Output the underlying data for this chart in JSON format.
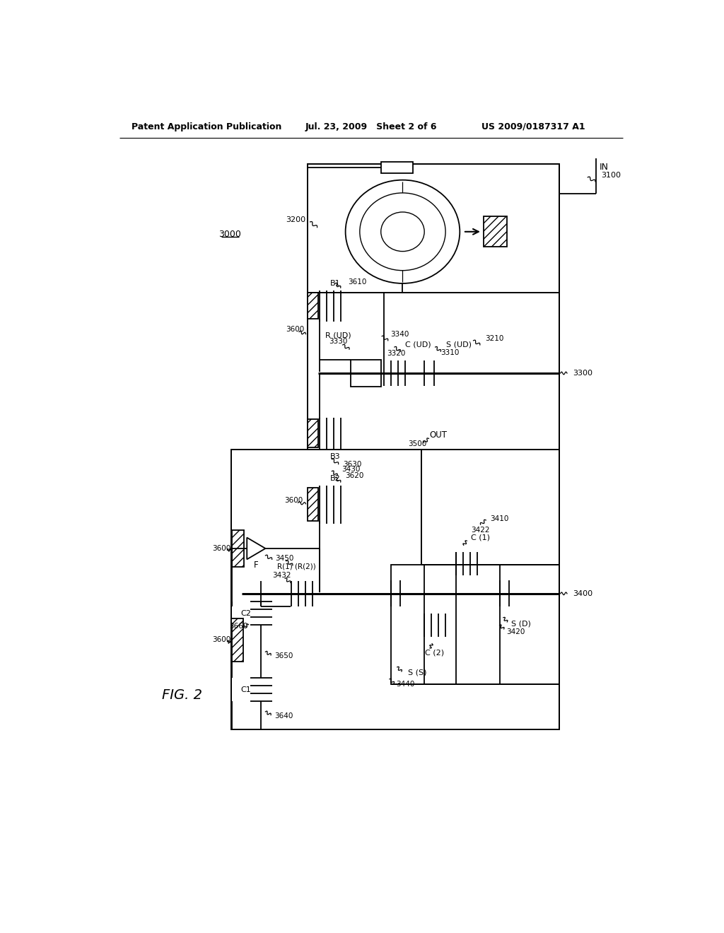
{
  "bg": "#ffffff",
  "lc": "#000000",
  "header_left": "Patent Application Publication",
  "header_mid": "Jul. 23, 2009   Sheet 2 of 6",
  "header_right": "US 2009/0187317 A1",
  "fig_label": "FIG. 2"
}
